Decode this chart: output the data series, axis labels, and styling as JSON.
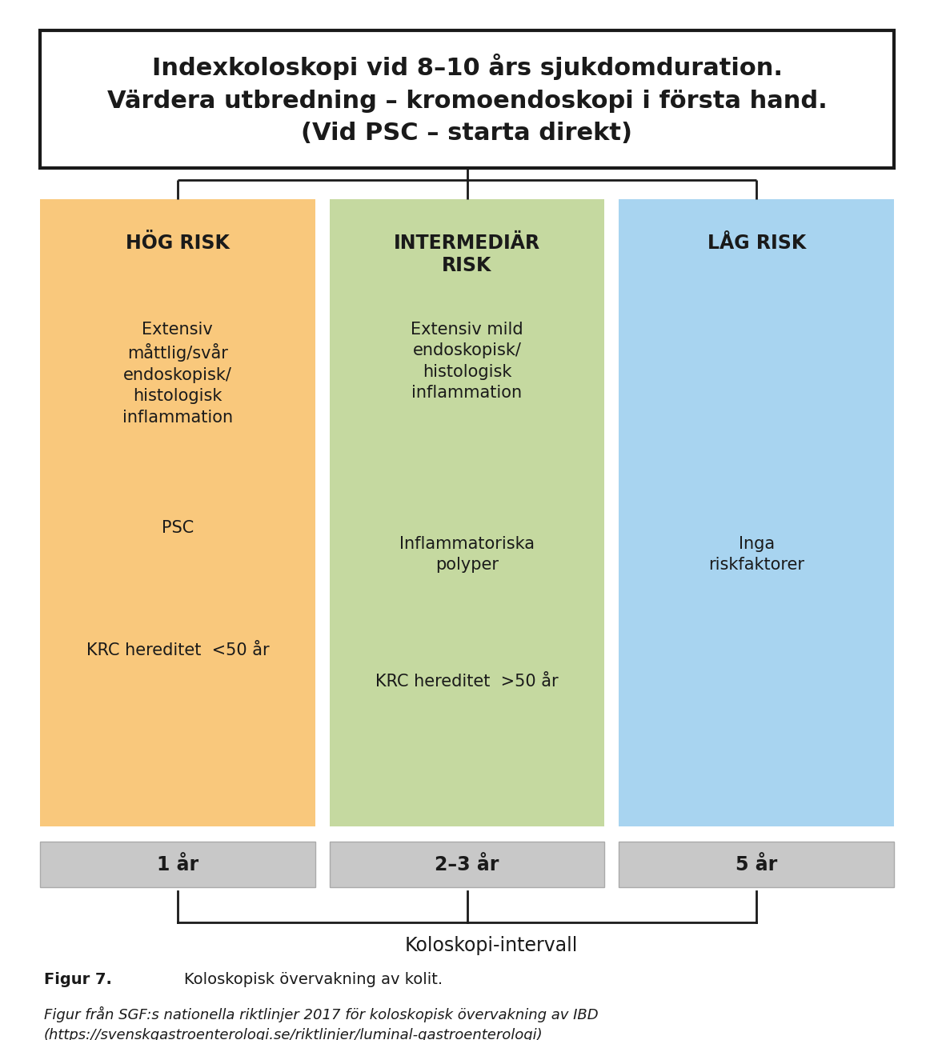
{
  "title_lines": [
    "Indexkoloskopi vid 8–10 års sjukdomduration.",
    "Värdera utbredning – kromoendoskopi i första hand.",
    "(Vid PSC – starta direkt)"
  ],
  "columns": [
    {
      "title": "HÖG RISK",
      "color": "#F9C87C",
      "items": [
        "Extensiv\nmåttlig/svår\nendoskopisk/\nhistologisk\ninflammation",
        "PSC",
        "KRC hereditet  <50 år"
      ],
      "interval": "1 år"
    },
    {
      "title": "INTERMEDIÄR\nRISK",
      "color": "#C5D9A0",
      "items": [
        "Extensiv mild\nendoskopisk/\nhistologisk\ninflammation",
        "Inflammatoriska\npolyper",
        "KRC hereditet  >50 år"
      ],
      "interval": "2–3 år"
    },
    {
      "title": "LÅG RISK",
      "color": "#A8D4F0",
      "items": [
        "Inga\nriskfaktorer"
      ],
      "interval": "5 år"
    }
  ],
  "interval_label": "Koloskopi-intervall",
  "fig_label_bold": "Figur 7.",
  "fig_label_normal": "Koloskopisk övervakning av kolit.",
  "fig_source": "Figur från SGF:s nationella riktlinjer 2017 för koloskopisk övervakning av IBD\n(https://svenskgastroenterologi.se/riktlinjer/luminal-gastroenterologi)",
  "bg_color": "#FFFFFF",
  "text_color": "#1a1a1a",
  "gray_color": "#C8C8C8",
  "box_border_color": "#1a1a1a",
  "line_color": "#1a1a1a"
}
